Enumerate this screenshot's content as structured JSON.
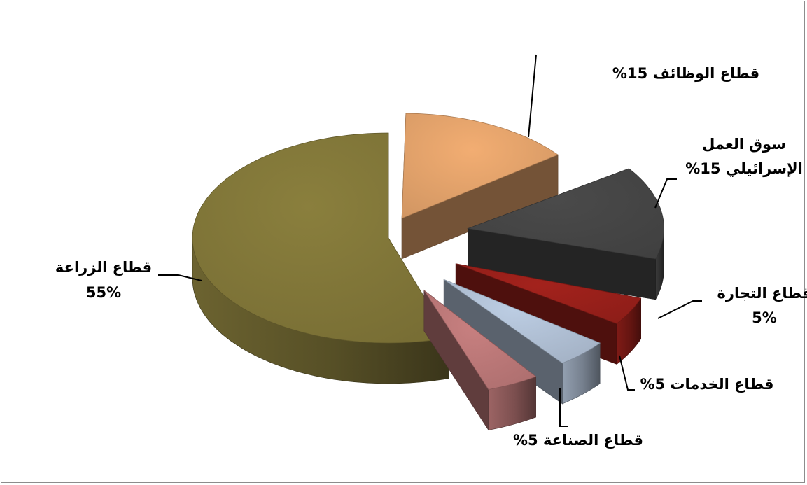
{
  "chart_data": {
    "type": "pie",
    "title": "",
    "style": "3d-exploded",
    "slices": [
      {
        "label_lines": [
          "قطاع الوظائف 15%"
        ],
        "value": 15,
        "color": "#f2ad72"
      },
      {
        "label_lines": [
          "سوق العمل",
          "الإسرائيلي 15%"
        ],
        "value": 15,
        "color": "#4a4a4a"
      },
      {
        "label_lines": [
          "قطاع التجارة",
          "5%"
        ],
        "value": 5,
        "color": "#a3221c"
      },
      {
        "label_lines": [
          "قطاع الخدمات 5%"
        ],
        "value": 5,
        "color": "#bccde3"
      },
      {
        "label_lines": [
          "قطاع الصناعة 5%"
        ],
        "value": 5,
        "color": "#c88080"
      },
      {
        "label_lines": [
          "قطاع الزراعة",
          "55%"
        ],
        "value": 55,
        "color": "#8a7f3d"
      }
    ]
  }
}
